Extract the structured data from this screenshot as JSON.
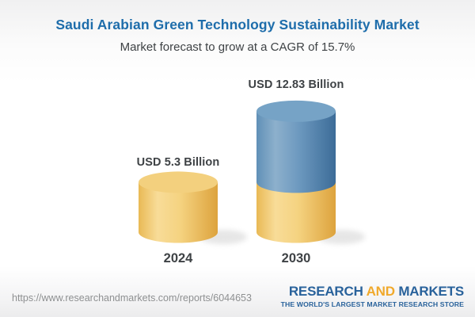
{
  "header": {
    "title": "Saudi Arabian Green Technology Sustainability Market",
    "subtitle": "Market forecast to grow at a CAGR of 15.7%"
  },
  "chart_data": {
    "type": "bar",
    "style": "3d-cylinder",
    "title": "Saudi Arabian Green Technology Sustainability Market",
    "subtitle": "Market forecast to grow at a CAGR of 15.7%",
    "unit": "USD Billion",
    "cagr_percent": 15.7,
    "categories": [
      "2024",
      "2030"
    ],
    "values": [
      5.3,
      12.83
    ],
    "baseline_value": 5.3,
    "ylim": [
      0,
      13
    ],
    "grid": false,
    "legend": false,
    "bars": [
      {
        "category": "2024",
        "value": 5.3,
        "label": "USD 5.3 Billion",
        "segments": [
          {
            "name": "2024 market size",
            "value": 5.3,
            "color_role": "base"
          }
        ]
      },
      {
        "category": "2030",
        "value": 12.83,
        "label": "USD 12.83 Billion",
        "segments": [
          {
            "name": "2024 market size",
            "value": 5.3,
            "color_role": "base"
          },
          {
            "name": "growth 2024-2030",
            "value": 7.53,
            "color_role": "growth"
          }
        ]
      }
    ],
    "colors": {
      "base_top": "#f3d07e",
      "base_gradient": [
        "#e9b955",
        "#f8dc98",
        "#f5d381",
        "#dda33d"
      ],
      "growth_top": "#76a3c6",
      "growth_gradient": [
        "#6090b7",
        "#8db0cc",
        "#6e9ac0",
        "#3c6c98"
      ],
      "shadow": "#b9b9b9"
    }
  },
  "footer": {
    "url": "https://www.researchandmarkets.com/reports/6044653",
    "logo": {
      "word1": "RESEARCH",
      "word2": "AND",
      "word3": "MARKETS",
      "tagline": "THE WORLD'S LARGEST MARKET RESEARCH STORE",
      "blue": "#29629b",
      "orange": "#f0a92b"
    }
  },
  "colors": {
    "title_blue": "#1e6dab",
    "text_dark": "#3e4245",
    "url_grey": "#8e9091"
  }
}
